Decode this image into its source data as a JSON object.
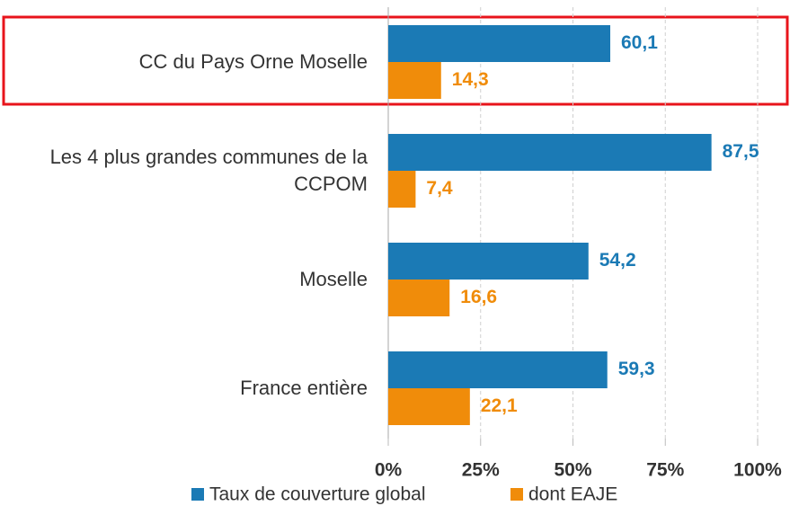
{
  "chart_data": {
    "type": "bar",
    "orientation": "horizontal",
    "categories": [
      "CC du Pays Orne Moselle",
      "Les 4 plus grandes communes de la CCPOM",
      "Moselle",
      "France entière"
    ],
    "series": [
      {
        "name": "Taux de couverture global",
        "color": "#1b7ab5",
        "values": [
          60.1,
          87.5,
          54.2,
          59.3
        ],
        "value_labels": [
          "60,1",
          "87,5",
          "54,2",
          "59,3"
        ]
      },
      {
        "name": "dont EAJE",
        "color": "#f08c0a",
        "values": [
          14.3,
          7.4,
          16.6,
          22.1
        ],
        "value_labels": [
          "14,3",
          "7,4",
          "16,6",
          "22,1"
        ]
      }
    ],
    "xlim": [
      0,
      100
    ],
    "xticks": [
      {
        "value": 0,
        "label": "0%"
      },
      {
        "value": 25,
        "label": "25%"
      },
      {
        "value": 50,
        "label": "50%"
      },
      {
        "value": 75,
        "label": "75%"
      },
      {
        "value": 100,
        "label": "100%"
      }
    ],
    "grid": true,
    "legend": "bottom"
  }
}
